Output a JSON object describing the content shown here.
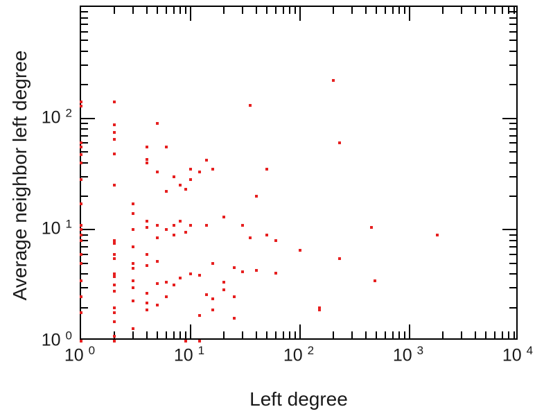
{
  "chart_data": {
    "type": "scatter",
    "title": "",
    "xlabel": "Left degree",
    "ylabel": "Average neighbor left degree",
    "x_scale": "log",
    "y_scale": "log",
    "xlim": [
      1,
      10000
    ],
    "ylim": [
      1,
      1000
    ],
    "x_tick_base": "10",
    "x_tick_exponents": [
      0,
      1,
      2,
      3,
      4
    ],
    "y_tick_base": "10",
    "y_tick_exponents": [
      0,
      1,
      2
    ],
    "grid": false,
    "legend": "none",
    "point_color": "#e62020",
    "axis_color": "#000000",
    "points": [
      [
        1,
        140
      ],
      [
        1,
        128
      ],
      [
        1,
        60
      ],
      [
        1,
        55
      ],
      [
        1,
        47
      ],
      [
        1,
        40
      ],
      [
        1,
        28
      ],
      [
        1,
        17
      ],
      [
        1,
        11
      ],
      [
        1,
        10
      ],
      [
        1,
        9
      ],
      [
        1,
        8
      ],
      [
        1,
        6
      ],
      [
        1,
        5
      ],
      [
        1,
        3.5
      ],
      [
        1,
        2.5
      ],
      [
        1,
        1.8
      ],
      [
        1,
        1
      ],
      [
        2,
        140
      ],
      [
        2,
        88
      ],
      [
        2,
        75
      ],
      [
        2,
        65
      ],
      [
        2,
        48
      ],
      [
        2,
        25
      ],
      [
        2,
        8
      ],
      [
        2,
        7.5
      ],
      [
        2,
        6
      ],
      [
        2,
        5.5
      ],
      [
        2,
        4
      ],
      [
        2,
        3.8
      ],
      [
        2,
        3.2
      ],
      [
        2,
        2.8
      ],
      [
        2,
        2
      ],
      [
        2,
        1.8
      ],
      [
        2,
        1.5
      ],
      [
        2,
        1.1
      ],
      [
        2,
        1
      ],
      [
        3,
        17
      ],
      [
        3,
        14
      ],
      [
        3,
        10
      ],
      [
        3,
        7
      ],
      [
        3,
        5
      ],
      [
        3,
        4.5
      ],
      [
        3,
        3.5
      ],
      [
        3,
        3
      ],
      [
        3,
        2.3
      ],
      [
        3,
        1.3
      ],
      [
        4,
        55
      ],
      [
        4,
        43
      ],
      [
        4,
        40
      ],
      [
        4,
        12
      ],
      [
        4,
        10.5
      ],
      [
        4,
        6
      ],
      [
        4,
        4.8
      ],
      [
        4,
        2.7
      ],
      [
        4,
        2.2
      ],
      [
        4,
        1.9
      ],
      [
        5,
        90
      ],
      [
        5,
        33
      ],
      [
        5,
        11
      ],
      [
        5,
        8.5
      ],
      [
        5,
        5.2
      ],
      [
        5,
        3.3
      ],
      [
        5,
        2.1
      ],
      [
        6,
        55
      ],
      [
        6,
        22
      ],
      [
        6,
        10
      ],
      [
        6,
        3.4
      ],
      [
        6,
        2.5
      ],
      [
        7,
        30
      ],
      [
        7,
        11
      ],
      [
        7,
        9
      ],
      [
        7,
        3.2
      ],
      [
        8,
        25
      ],
      [
        8,
        12
      ],
      [
        8,
        3.7
      ],
      [
        9,
        23
      ],
      [
        9,
        9.5
      ],
      [
        9,
        1
      ],
      [
        10,
        35
      ],
      [
        10,
        28
      ],
      [
        10,
        11
      ],
      [
        10,
        4
      ],
      [
        12,
        33
      ],
      [
        12,
        3.9
      ],
      [
        12,
        1.7
      ],
      [
        12,
        1
      ],
      [
        14,
        42
      ],
      [
        14,
        11
      ],
      [
        14,
        2.6
      ],
      [
        16,
        35
      ],
      [
        16,
        5
      ],
      [
        16,
        2.4
      ],
      [
        16,
        1.9
      ],
      [
        20,
        13
      ],
      [
        20,
        3.4
      ],
      [
        20,
        2.9
      ],
      [
        25,
        4.6
      ],
      [
        25,
        2.5
      ],
      [
        25,
        1.6
      ],
      [
        30,
        11
      ],
      [
        30,
        4.2
      ],
      [
        35,
        130
      ],
      [
        35,
        8.5
      ],
      [
        40,
        20
      ],
      [
        40,
        4.3
      ],
      [
        50,
        35
      ],
      [
        50,
        9
      ],
      [
        60,
        8
      ],
      [
        60,
        4.1
      ],
      [
        100,
        6.5
      ],
      [
        150,
        2
      ],
      [
        150,
        1.9
      ],
      [
        200,
        220
      ],
      [
        230,
        60
      ],
      [
        230,
        5.5
      ],
      [
        450,
        10.5
      ],
      [
        480,
        3.5
      ],
      [
        1800,
        9
      ]
    ]
  }
}
